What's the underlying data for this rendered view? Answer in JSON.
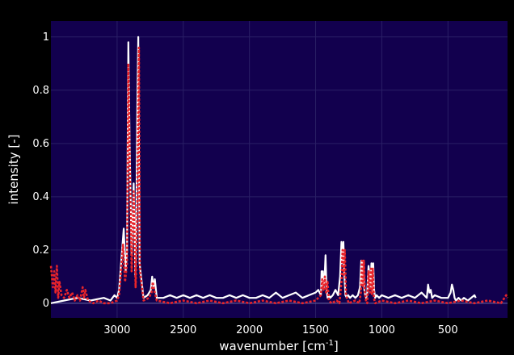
{
  "chart_data": {
    "type": "line",
    "xlabel": "wavenumber [cm",
    "xlabel_sup": "-1",
    "xlabel_suffix": "]",
    "ylabel": "intensity [-]",
    "xlim": [
      3500,
      50
    ],
    "ylim": [
      -0.055,
      1.06
    ],
    "x_reversed": true,
    "grid": true,
    "legend": "none",
    "x_ticks": [
      3000,
      2500,
      2000,
      1500,
      1000,
      500
    ],
    "y_ticks": [
      0,
      0.2,
      0.4,
      0.6,
      0.8,
      1
    ],
    "y_tick_labels": [
      "0",
      "0.2",
      "0.4",
      "0.6",
      "0.8",
      "1"
    ],
    "colors": {
      "plot_bg": "#12004e",
      "page_bg": "#000000",
      "grid": "#2a1f66",
      "series_a": "#ffffff",
      "series_b": "#e8242a",
      "zeroline": "#6a6aa8"
    },
    "series": [
      {
        "style": "solid",
        "color": "#ffffff",
        "x": [
          3500,
          3400,
          3300,
          3200,
          3100,
          3050,
          3020,
          3000,
          2985,
          2970,
          2950,
          2935,
          2925,
          2915,
          2905,
          2890,
          2875,
          2862,
          2855,
          2848,
          2840,
          2830,
          2800,
          2770,
          2745,
          2735,
          2725,
          2715,
          2700,
          2650,
          2600,
          2550,
          2500,
          2450,
          2400,
          2350,
          2300,
          2250,
          2200,
          2150,
          2100,
          2050,
          2000,
          1950,
          1900,
          1850,
          1800,
          1750,
          1700,
          1650,
          1600,
          1550,
          1500,
          1480,
          1460,
          1455,
          1450,
          1445,
          1440,
          1432,
          1425,
          1418,
          1410,
          1400,
          1390,
          1370,
          1350,
          1330,
          1315,
          1305,
          1298,
          1290,
          1282,
          1275,
          1265,
          1255,
          1240,
          1220,
          1200,
          1180,
          1165,
          1155,
          1148,
          1140,
          1132,
          1125,
          1118,
          1110,
          1100,
          1085,
          1078,
          1070,
          1065,
          1058,
          1050,
          1040,
          1020,
          1000,
          950,
          900,
          850,
          800,
          750,
          700,
          660,
          650,
          640,
          630,
          620,
          600,
          550,
          500,
          480,
          470,
          460,
          450,
          440,
          420,
          400,
          380,
          350,
          300,
          290
        ],
        "y": [
          0.0,
          0.01,
          0.02,
          0.01,
          0.02,
          0.01,
          0.03,
          0.02,
          0.05,
          0.15,
          0.28,
          0.12,
          0.2,
          0.98,
          0.6,
          0.18,
          0.45,
          0.1,
          0.3,
          0.7,
          1.0,
          0.15,
          0.02,
          0.03,
          0.05,
          0.1,
          0.06,
          0.09,
          0.02,
          0.02,
          0.03,
          0.02,
          0.03,
          0.02,
          0.03,
          0.02,
          0.03,
          0.02,
          0.02,
          0.03,
          0.02,
          0.03,
          0.02,
          0.02,
          0.03,
          0.02,
          0.04,
          0.02,
          0.03,
          0.04,
          0.02,
          0.03,
          0.04,
          0.05,
          0.03,
          0.12,
          0.07,
          0.12,
          0.05,
          0.1,
          0.18,
          0.06,
          0.02,
          0.03,
          0.02,
          0.03,
          0.05,
          0.03,
          0.1,
          0.23,
          0.15,
          0.23,
          0.1,
          0.03,
          0.02,
          0.03,
          0.02,
          0.03,
          0.02,
          0.03,
          0.06,
          0.16,
          0.07,
          0.16,
          0.05,
          0.03,
          0.02,
          0.04,
          0.14,
          0.06,
          0.15,
          0.04,
          0.15,
          0.05,
          0.02,
          0.03,
          0.02,
          0.03,
          0.02,
          0.03,
          0.02,
          0.03,
          0.02,
          0.04,
          0.02,
          0.07,
          0.04,
          0.05,
          0.02,
          0.03,
          0.02,
          0.02,
          0.04,
          0.07,
          0.05,
          0.02,
          0.01,
          0.02,
          0.01,
          0.02,
          0.01,
          0.03,
          0.02
        ]
      },
      {
        "style": "dotted",
        "color": "#e8242a",
        "x": [
          3500,
          3485,
          3475,
          3465,
          3455,
          3445,
          3435,
          3420,
          3400,
          3380,
          3360,
          3340,
          3320,
          3300,
          3280,
          3260,
          3250,
          3240,
          3220,
          3180,
          3140,
          3100,
          3050,
          3000,
          2985,
          2970,
          2955,
          2940,
          2925,
          2915,
          2905,
          2890,
          2875,
          2860,
          2850,
          2842,
          2835,
          2828,
          2800,
          2760,
          2740,
          2730,
          2720,
          2700,
          2600,
          2500,
          2400,
          2300,
          2200,
          2100,
          2000,
          1900,
          1800,
          1700,
          1600,
          1500,
          1480,
          1460,
          1450,
          1440,
          1430,
          1420,
          1410,
          1400,
          1380,
          1340,
          1320,
          1305,
          1296,
          1288,
          1280,
          1270,
          1250,
          1200,
          1170,
          1158,
          1150,
          1142,
          1135,
          1128,
          1120,
          1110,
          1100,
          1090,
          1082,
          1075,
          1068,
          1060,
          1050,
          1000,
          900,
          800,
          700,
          600,
          500,
          400,
          300,
          200,
          100,
          60,
          50
        ],
        "y": [
          0.14,
          0.06,
          0.12,
          0.04,
          0.14,
          0.02,
          0.08,
          0.03,
          0.02,
          0.05,
          0.02,
          0.04,
          0.01,
          0.03,
          0.01,
          0.06,
          0.02,
          0.05,
          0.01,
          0.0,
          0.01,
          0.0,
          0.0,
          0.01,
          0.03,
          0.12,
          0.22,
          0.08,
          0.15,
          0.9,
          0.55,
          0.12,
          0.42,
          0.06,
          0.25,
          0.65,
          0.96,
          0.12,
          0.01,
          0.02,
          0.04,
          0.08,
          0.05,
          0.01,
          0.0,
          0.01,
          0.0,
          0.01,
          0.0,
          0.01,
          0.0,
          0.01,
          0.0,
          0.01,
          0.0,
          0.01,
          0.02,
          0.03,
          0.09,
          0.05,
          0.1,
          0.04,
          0.08,
          0.01,
          0.0,
          0.01,
          0.0,
          0.08,
          0.2,
          0.1,
          0.2,
          0.03,
          0.0,
          0.01,
          0.0,
          0.04,
          0.16,
          0.06,
          0.16,
          0.04,
          0.01,
          0.0,
          0.12,
          0.04,
          0.13,
          0.03,
          0.13,
          0.02,
          0.0,
          0.01,
          0.0,
          0.01,
          0.0,
          0.01,
          0.0,
          0.01,
          0.0,
          0.01,
          0.0,
          0.03,
          0.02
        ]
      }
    ]
  }
}
